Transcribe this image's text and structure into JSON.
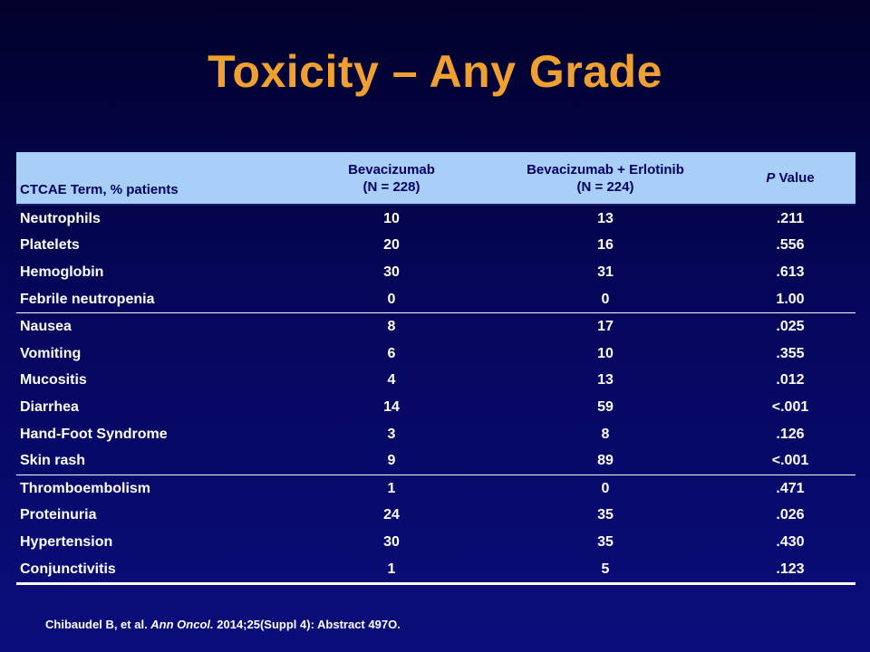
{
  "slide": {
    "title": "Toxicity – Any Grade"
  },
  "table": {
    "headers": {
      "term": "CTCAE Term, % patients",
      "bev_line1": "Bevacizumab",
      "bev_line2": "(N = 228)",
      "combo_line1": "Bevacizumab + Erlotinib",
      "combo_line2": "(N = 224)",
      "p_italic": "P",
      "p_rest": " Value"
    },
    "rows": [
      {
        "term": "Neutrophils",
        "bev": "10",
        "combo": "13",
        "p": ".211"
      },
      {
        "term": "Platelets",
        "bev": "20",
        "combo": "16",
        "p": ".556"
      },
      {
        "term": "Hemoglobin",
        "bev": "30",
        "combo": "31",
        "p": ".613"
      },
      {
        "term": "Febrile neutropenia",
        "bev": "0",
        "combo": "0",
        "p": "1.00"
      },
      {
        "term": "Nausea",
        "bev": "8",
        "combo": "17",
        "p": ".025"
      },
      {
        "term": "Vomiting",
        "bev": "6",
        "combo": "10",
        "p": ".355"
      },
      {
        "term": "Mucositis",
        "bev": "4",
        "combo": "13",
        "p": ".012"
      },
      {
        "term": "Diarrhea",
        "bev": "14",
        "combo": "59",
        "p": "<.001"
      },
      {
        "term": "Hand-Foot Syndrome",
        "bev": "3",
        "combo": "8",
        "p": ".126"
      },
      {
        "term": "Skin rash",
        "bev": "9",
        "combo": "89",
        "p": "<.001"
      },
      {
        "term": "Thromboembolism",
        "bev": "1",
        "combo": "0",
        "p": ".471"
      },
      {
        "term": "Proteinuria",
        "bev": "24",
        "combo": "35",
        "p": ".026"
      },
      {
        "term": "Hypertension",
        "bev": "30",
        "combo": "35",
        "p": ".430"
      },
      {
        "term": "Conjunctivitis",
        "bev": "1",
        "combo": "5",
        "p": ".123"
      }
    ]
  },
  "citation": {
    "authors": "Chibaudel B, et al. ",
    "journal": "Ann Oncol.",
    "details": " 2014;25(Suppl 4): Abstract 497O."
  },
  "colors": {
    "title": "#f0a030",
    "header_bg": "#a7cff7",
    "header_text": "#000060",
    "background": "#05065a"
  }
}
